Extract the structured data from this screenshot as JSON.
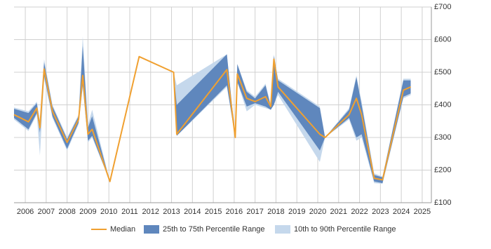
{
  "chart_data": {
    "type": "line",
    "x": [
      2005.46,
      2006.15,
      2006.55,
      2006.7,
      2006.9,
      2007.3,
      2008.0,
      2008.55,
      2008.75,
      2009.0,
      2009.2,
      2010.05,
      2011.45,
      2013.1,
      2013.25,
      2015.65,
      2016.05,
      2016.15,
      2016.6,
      2017.0,
      2017.5,
      2017.75,
      2017.9,
      2018.1,
      2020.1,
      2020.35,
      2021.5,
      2021.85,
      2022.1,
      2022.7,
      2023.1,
      2024.1,
      2024.45
    ],
    "series": [
      {
        "name": "Median",
        "color": "#f0a030",
        "values": [
          370,
          348,
          390,
          330,
          510,
          380,
          285,
          355,
          490,
          310,
          325,
          165,
          548,
          500,
          310,
          508,
          300,
          495,
          420,
          410,
          425,
          395,
          540,
          455,
          310,
          300,
          370,
          420,
          370,
          175,
          170,
          445,
          455
        ]
      },
      {
        "name": "25th to 75th Percentile Range",
        "color": "#5f87bd",
        "low": [
          360,
          325,
          375,
          315,
          490,
          365,
          265,
          345,
          460,
          290,
          305,
          165,
          548,
          500,
          305,
          460,
          300,
          470,
          395,
          405,
          395,
          385,
          400,
          440,
          260,
          300,
          360,
          300,
          310,
          165,
          160,
          425,
          435
        ],
        "high": [
          388,
          375,
          405,
          345,
          530,
          395,
          295,
          365,
          580,
          330,
          365,
          165,
          548,
          500,
          400,
          555,
          300,
          525,
          440,
          420,
          460,
          395,
          550,
          475,
          390,
          300,
          385,
          485,
          400,
          185,
          178,
          475,
          475
        ]
      },
      {
        "name": "10th to 90th Percentile Range",
        "color": "#c5d8ec",
        "low": [
          355,
          320,
          370,
          245,
          480,
          360,
          260,
          340,
          455,
          285,
          300,
          165,
          548,
          500,
          305,
          455,
          300,
          470,
          380,
          400,
          390,
          385,
          400,
          430,
          225,
          300,
          355,
          290,
          300,
          160,
          158,
          420,
          430
        ],
        "high": [
          392,
          380,
          410,
          350,
          540,
          400,
          300,
          370,
          610,
          340,
          385,
          165,
          548,
          500,
          460,
          555,
          300,
          525,
          445,
          425,
          465,
          400,
          555,
          480,
          395,
          300,
          390,
          490,
          410,
          190,
          180,
          480,
          480
        ]
      }
    ],
    "xlim": [
      2005.46,
      2025.44
    ],
    "xticks": [
      2006,
      2007,
      2008,
      2009,
      2010,
      2011,
      2012,
      2013,
      2014,
      2015,
      2016,
      2017,
      2018,
      2019,
      2020,
      2021,
      2022,
      2023,
      2024,
      2025
    ],
    "ylim": [
      100,
      700
    ],
    "yticks": [
      {
        "value": 100,
        "label": "£100"
      },
      {
        "value": 200,
        "label": "£200"
      },
      {
        "value": 300,
        "label": "£300"
      },
      {
        "value": 400,
        "label": "£400"
      },
      {
        "value": 500,
        "label": "£500"
      },
      {
        "value": 600,
        "label": "£600"
      },
      {
        "value": 700,
        "label": "£700"
      }
    ],
    "grid": true
  }
}
